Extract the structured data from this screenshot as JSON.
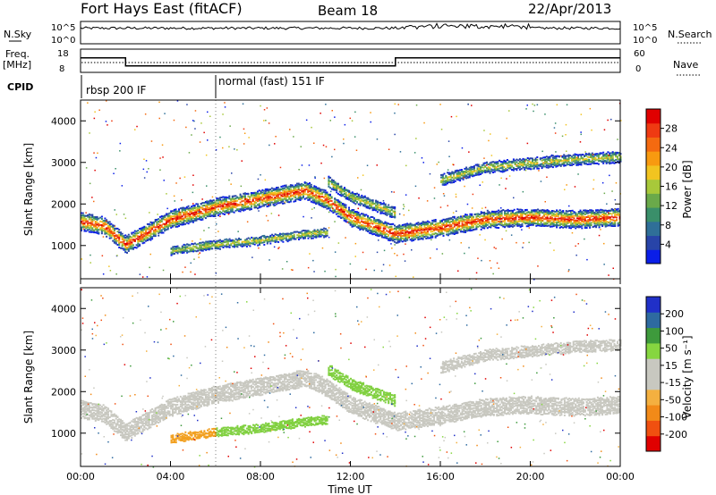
{
  "header": {
    "station": "Fort Hays East (fitACF)",
    "beam": "Beam 18",
    "date": "22/Apr/2013"
  },
  "colors": {
    "power": [
      "#0a1ee8",
      "#2844a8",
      "#2f6f98",
      "#3a8f6a",
      "#6aa94a",
      "#a8c83a",
      "#f2c420",
      "#f89a10",
      "#f46a10",
      "#ef3a12",
      "#e00000"
    ],
    "velocity": [
      "#e00000",
      "#f05010",
      "#f28a18",
      "#f4b040",
      "#c8c8c0",
      "#c8c8c0",
      "#86d640",
      "#3e9a3c",
      "#2e6aa0",
      "#2030c8"
    ],
    "scatter_gray": "#c8c8c0",
    "scatter_green": "#80d040",
    "scatter_orange": "#f2a020"
  },
  "chart_data": [
    {
      "type": "line",
      "panel": "noise",
      "left_label": "N.Sky",
      "right_label": "N.Search",
      "left_ticks": [
        "10^5",
        "10^0"
      ],
      "right_ticks": [
        "10^5",
        "10^0"
      ]
    },
    {
      "type": "line",
      "panel": "frequency",
      "left_label_1": "Freq.",
      "left_label_2": "[MHz]",
      "right_label": "Nave",
      "left_ticks": [
        "18",
        "8"
      ],
      "right_ticks": [
        "60",
        "0"
      ],
      "freq_steps": [
        {
          "start": "00:00",
          "end": "02:00",
          "freq_mhz": 14.5
        },
        {
          "start": "02:00",
          "end": "14:00",
          "freq_mhz": 10.3
        },
        {
          "start": "14:00",
          "end": "24:00",
          "freq_mhz": 14.5
        }
      ]
    },
    {
      "type": "table",
      "panel": "cpid",
      "label": "CPID",
      "entries": [
        {
          "start": "00:00",
          "text": "rbsp 200 IF"
        },
        {
          "start": "06:00",
          "text": "normal (fast) 151 IF"
        }
      ]
    },
    {
      "type": "heatmap",
      "panel": "power",
      "ylabel": "Slant Range [km]",
      "yticks": [
        1000,
        2000,
        3000,
        4000
      ],
      "ylim": [
        200,
        4500
      ],
      "colorbar_label": "Power [dB]",
      "colorbar_ticks": [
        "4",
        "8",
        "12",
        "16",
        "20",
        "24",
        "28"
      ],
      "bands": [
        {
          "desc": "main echo",
          "points": [
            [
              0,
              1600
            ],
            [
              1,
              1500
            ],
            [
              2,
              1050
            ],
            [
              4,
              1650
            ],
            [
              6,
              1950
            ],
            [
              8,
              2150
            ],
            [
              10,
              2350
            ],
            [
              11,
              2100
            ],
            [
              12,
              1700
            ],
            [
              14,
              1300
            ],
            [
              16,
              1450
            ],
            [
              18,
              1650
            ],
            [
              20,
              1700
            ],
            [
              22,
              1650
            ],
            [
              24,
              1700
            ]
          ],
          "width_km": 400
        },
        {
          "desc": "lower band",
          "points": [
            [
              4,
              900
            ],
            [
              6,
              1050
            ],
            [
              8,
              1150
            ],
            [
              10,
              1300
            ],
            [
              11,
              1350
            ]
          ],
          "width_km": 200
        },
        {
          "desc": "upper band",
          "points": [
            [
              11,
              2550
            ],
            [
              12,
              2200
            ],
            [
              14,
              1800
            ]
          ],
          "width_km": 250
        },
        {
          "desc": "afternoon upper",
          "points": [
            [
              16,
              2600
            ],
            [
              18,
              2900
            ],
            [
              20,
              3000
            ],
            [
              22,
              3100
            ],
            [
              24,
              3150
            ]
          ],
          "width_km": 250
        }
      ]
    },
    {
      "type": "heatmap",
      "panel": "velocity",
      "ylabel": "Slant Range [km]",
      "yticks": [
        1000,
        2000,
        3000,
        4000
      ],
      "ylim": [
        200,
        4500
      ],
      "xlabel": "Time UT",
      "xticks": [
        "00:00",
        "04:00",
        "08:00",
        "12:00",
        "16:00",
        "20:00",
        "00:00"
      ],
      "colorbar_label": "Velocity [m s⁻¹]",
      "colorbar_ticks": [
        "-200",
        "-100",
        "-50",
        "-15",
        "15",
        "50",
        "100",
        "200"
      ]
    }
  ]
}
